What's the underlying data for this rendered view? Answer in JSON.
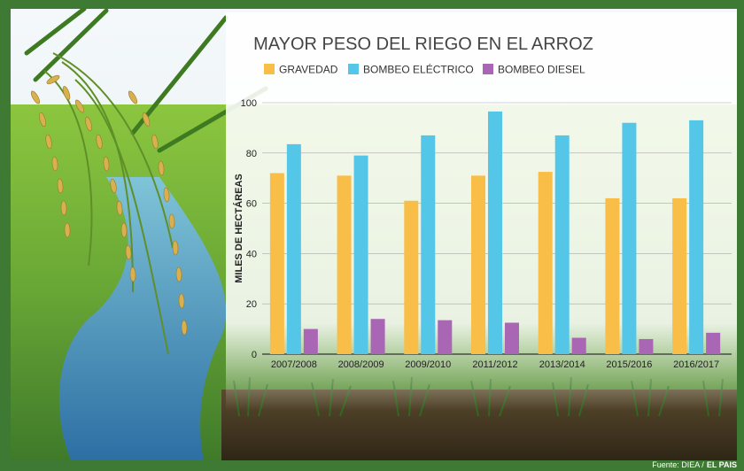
{
  "chart_data": {
    "type": "bar",
    "title": "MAYOR PESO DEL RIEGO EN EL ARROZ",
    "xlabel": "",
    "ylabel": "MILES DE HECTÁREAS",
    "ylim": [
      0,
      100
    ],
    "yticks": [
      0,
      20,
      40,
      60,
      80,
      100
    ],
    "grid": true,
    "legend_position": "top",
    "categories": [
      "2007/2008",
      "2008/2009",
      "2009/2010",
      "2011/2012",
      "2013/2014",
      "2015/2016",
      "2016/2017"
    ],
    "series": [
      {
        "name": "GRAVEDAD",
        "color": "#f9be48",
        "values": [
          72,
          71,
          61,
          71,
          72.5,
          62,
          62
        ]
      },
      {
        "name": "BOMBEO ELÉCTRICO",
        "color": "#54c7e8",
        "values": [
          83.5,
          79,
          87,
          96.5,
          87,
          92,
          93
        ]
      },
      {
        "name": "BOMBEO DIESEL",
        "color": "#a866b5",
        "values": [
          10,
          14,
          13.5,
          12.5,
          6.5,
          6,
          8.5
        ]
      }
    ]
  },
  "source": {
    "prefix": "Fuente: DIEA /",
    "brand": "EL PAIS"
  }
}
